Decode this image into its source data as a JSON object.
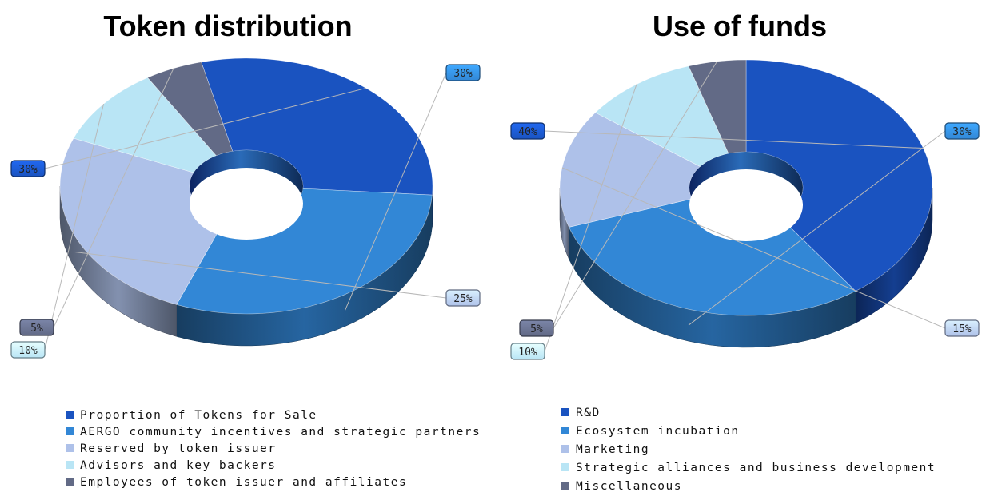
{
  "colors": [
    "#1a53c0",
    "#3287d6",
    "#aec1e9",
    "#b9e5f5",
    "#626a86"
  ],
  "chart_data": [
    {
      "type": "pie",
      "title": "Token distribution",
      "categories": [
        "Proportion of Tokens for Sale",
        "AERGO community incentives and strategic partners",
        "Reserved by token issuer",
        "Advisors and key backers",
        "Employees of token issuer and affiliates"
      ],
      "values": [
        30,
        30,
        25,
        10,
        5
      ],
      "labels": [
        "30%",
        "30%",
        "25%",
        "10%",
        "5%"
      ],
      "style": "3d-donut",
      "legend": "bottom"
    },
    {
      "type": "pie",
      "title": "Use of funds",
      "categories": [
        "R&D",
        "Ecosystem incubation",
        "Marketing",
        "Strategic alliances and business development",
        "Miscellaneous"
      ],
      "values": [
        40,
        30,
        15,
        10,
        5
      ],
      "labels": [
        "40%",
        "30%",
        "15%",
        "10%",
        "5%"
      ],
      "style": "3d-donut",
      "legend": "bottom"
    }
  ]
}
